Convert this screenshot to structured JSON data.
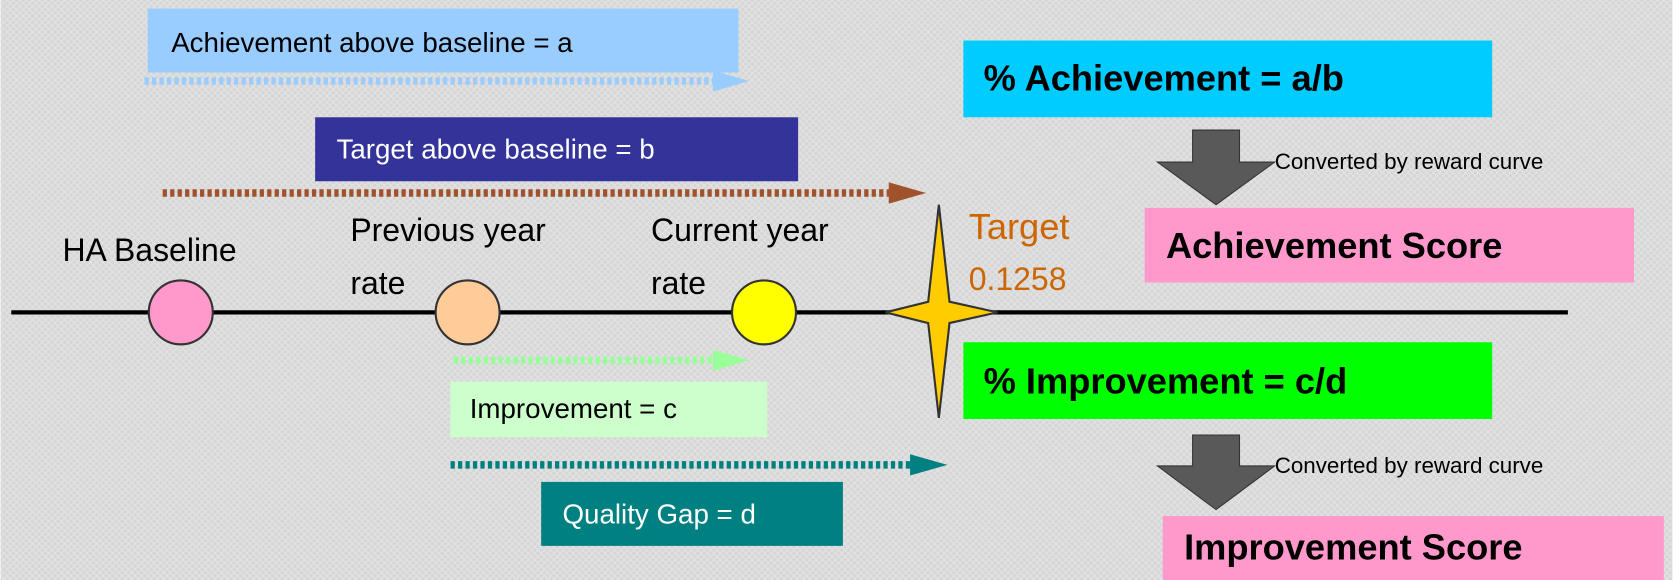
{
  "arrows": {
    "achievement_above": "Achievement above baseline = a",
    "target_above": "Target above baseline = b",
    "improvement": "Improvement = c",
    "quality_gap": "Quality Gap = d"
  },
  "points": [
    {
      "lines": [
        "HA Baseline"
      ]
    },
    {
      "lines": [
        "Previous year",
        "rate"
      ]
    },
    {
      "lines": [
        "Current year",
        "rate"
      ]
    }
  ],
  "target": {
    "label": "Target",
    "value": "0.1258"
  },
  "results": [
    {
      "formula": "% Achievement = a/b",
      "conversion": "Converted by reward curve",
      "score": "Achievement Score"
    },
    {
      "formula": "% Improvement = c/d",
      "conversion": "Converted by reward curve",
      "score": "Improvement Score"
    }
  ]
}
